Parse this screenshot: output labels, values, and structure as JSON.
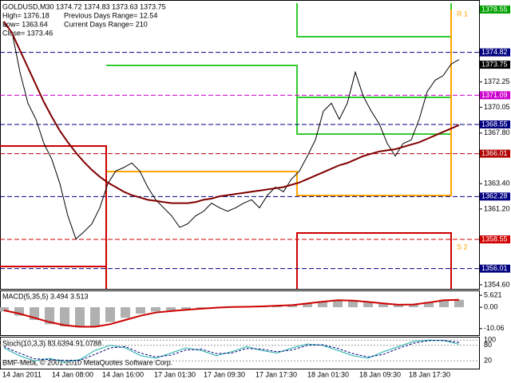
{
  "chart_data": {
    "type": "line",
    "header": [
      "GOLDUSD,M30  1374.72 1374.83 1373.63 1373.75",
      "High= 1376.18",
      "Low= 1363.64",
      "Close= 1373.46",
      "Previous Days Range= 12.54",
      "Current Days Range= 210"
    ],
    "time_labels": [
      "14 Jan 2011",
      "14 Jan 08:00",
      "14 Jan 16:00",
      "17 Jan 01:30",
      "17 Jan 09:30",
      "17 Jan 17:30",
      "18 Jan 01:30",
      "18 Jan 09:30",
      "18 Jan 17:30"
    ],
    "ylim": [
      1354.25,
      1379.1
    ],
    "yticks": [
      1372.25,
      1370.05,
      {
        "value": 1367.8,
        "label": "1367.80"
      },
      {
        "value": 1363.4,
        "label": "1363.40"
      },
      {
        "value": 1361.2,
        "label": "1361.20"
      },
      {
        "value": 1354.6,
        "label": "1354.60"
      }
    ],
    "levels": [
      {
        "value": 1378.55,
        "color": "#00a000",
        "style": "solid"
      },
      {
        "value": 1374.82,
        "color": "#000080",
        "style": "dash"
      },
      {
        "value": 1373.75,
        "color": "#000000",
        "style": "solid"
      },
      {
        "value": 1371.09,
        "color": "#cc00cc",
        "style": "dash"
      },
      {
        "value": 1368.55,
        "color": "#000080",
        "style": "dash"
      },
      {
        "value": 1366.01,
        "color": "#b00000",
        "style": "dash"
      },
      {
        "value": 1362.28,
        "color": "#000080",
        "style": "dash"
      },
      {
        "value": 1358.55,
        "color": "#d00000",
        "style": "dash"
      },
      {
        "value": 1356.01,
        "color": "#000080",
        "style": "dash"
      }
    ],
    "pivot_labels": [
      "R 1",
      "S 2"
    ],
    "series": [
      {
        "name": "GOLDUSD",
        "color": "#000000",
        "values": [
          1377.3,
          1376.6,
          1373.1,
          1370.4,
          1369,
          1366.9,
          1365.5,
          1363.4,
          1360.6,
          1358.6,
          1359.2,
          1359.9,
          1361.3,
          1363.4,
          1364.5,
          1364.8,
          1365.2,
          1364.5,
          1363.1,
          1362,
          1361.3,
          1360.6,
          1359.6,
          1359.9,
          1360.6,
          1361,
          1361.7,
          1361.3,
          1361,
          1361.3,
          1361.7,
          1362,
          1361.3,
          1362.4,
          1363.1,
          1362.7,
          1363.8,
          1364.5,
          1365.8,
          1367.2,
          1369.7,
          1370.4,
          1369,
          1370.4,
          1373.1,
          1371,
          1369.7,
          1368.6,
          1366.9,
          1365.8,
          1366.9,
          1367.2,
          1369,
          1371.4,
          1372.4,
          1372.8,
          1373.8,
          1374.2
        ]
      },
      {
        "name": "MA",
        "color": "#800000",
        "values": [
          1377.5,
          1376.5,
          1375,
          1373.5,
          1372,
          1370.5,
          1369.2,
          1368,
          1367,
          1366.1,
          1365.3,
          1364.6,
          1364,
          1363.5,
          1363.1,
          1362.7,
          1362.4,
          1362.2,
          1362,
          1361.9,
          1361.8,
          1361.7,
          1361.7,
          1361.7,
          1361.8,
          1362,
          1362.1,
          1362.3,
          1362.4,
          1362.5,
          1362.6,
          1362.7,
          1362.8,
          1362.9,
          1363,
          1363.1,
          1363.3,
          1363.5,
          1363.8,
          1364.1,
          1364.4,
          1364.7,
          1365,
          1365.2,
          1365.5,
          1365.8,
          1366,
          1366.2,
          1366.3,
          1366.4,
          1366.6,
          1366.8,
          1367,
          1367.3,
          1367.6,
          1367.9,
          1368.2,
          1368.5
        ]
      }
    ],
    "macd": {
      "title": "MACD(5,35,5) 3.494 3.513",
      "ylim": [
        -13.15,
        7.54
      ],
      "yticks": [
        5.621,
        {
          "value": 0,
          "label": "0.00"
        },
        -10.06
      ],
      "histogram": [
        -2,
        -4,
        -6,
        -8,
        -9,
        -9.5,
        -9,
        -7,
        -5,
        -3,
        -2,
        -1.5,
        -1,
        -0.5,
        0,
        0.3,
        0.2,
        0.5,
        0.8,
        1.2,
        2,
        2.8,
        3.5,
        3,
        2.2,
        1.5,
        1,
        1.5,
        2.5,
        3.5,
        3.5
      ],
      "signal": [
        -1.5,
        -3,
        -5,
        -7,
        -8.5,
        -9.2,
        -9.2,
        -8,
        -6,
        -4,
        -2.5,
        -1.8,
        -1.2,
        -0.7,
        -0.2,
        0.1,
        0.2,
        0.4,
        0.7,
        1,
        1.8,
        2.6,
        3.3,
        3.1,
        2.5,
        1.8,
        1.2,
        1.3,
        2.2,
        3.3,
        3.5
      ]
    },
    "stoch": {
      "title": "Stoch(10,3,3) 83.6394 91.0788",
      "ylim": [
        -10,
        110
      ],
      "yticks": [
        100,
        80,
        20
      ],
      "main": [
        70,
        40,
        20,
        30,
        15,
        25,
        60,
        80,
        70,
        40,
        30,
        50,
        70,
        60,
        40,
        55,
        75,
        60,
        50,
        70,
        85,
        80,
        60,
        40,
        30,
        55,
        75,
        95,
        100,
        98,
        84
      ],
      "signal": [
        75,
        50,
        28,
        25,
        22,
        22,
        45,
        70,
        75,
        50,
        35,
        42,
        62,
        65,
        48,
        50,
        68,
        65,
        55,
        62,
        80,
        82,
        68,
        48,
        35,
        45,
        68,
        88,
        98,
        99,
        91
      ]
    },
    "footer": "BMF-Meta, © 2001-2010 MetaQuotes Software Corp."
  }
}
